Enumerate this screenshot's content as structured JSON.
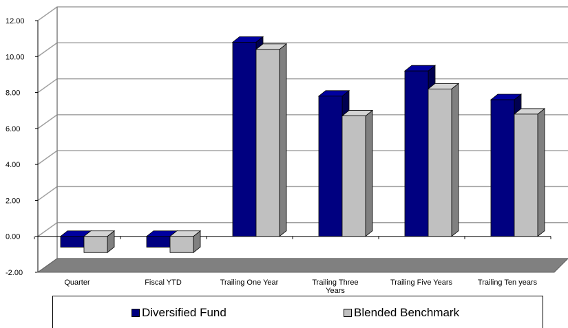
{
  "chart_data": {
    "type": "bar",
    "categories": [
      "Quarter",
      "Fiscal YTD",
      "Trailing One Year",
      "Trailing Three Years",
      "Trailing Five Years",
      "Trailing Ten years"
    ],
    "series": [
      {
        "name": "Diversified Fund",
        "values": [
          -0.6,
          -0.6,
          10.8,
          7.8,
          9.2,
          7.6
        ],
        "color": "#000080"
      },
      {
        "name": "Blended Benchmark",
        "values": [
          -0.9,
          -0.9,
          10.4,
          6.7,
          8.2,
          6.8
        ],
        "color": "#c0c0c0"
      }
    ],
    "yticks": [
      "12.00",
      "10.00",
      "8.00",
      "6.00",
      "4.00",
      "2.00",
      "0.00",
      "-2.00"
    ],
    "ylim": [
      -2,
      12
    ],
    "grid": true,
    "legend_position": "bottom",
    "title": "",
    "xlabel": "",
    "ylabel": ""
  }
}
